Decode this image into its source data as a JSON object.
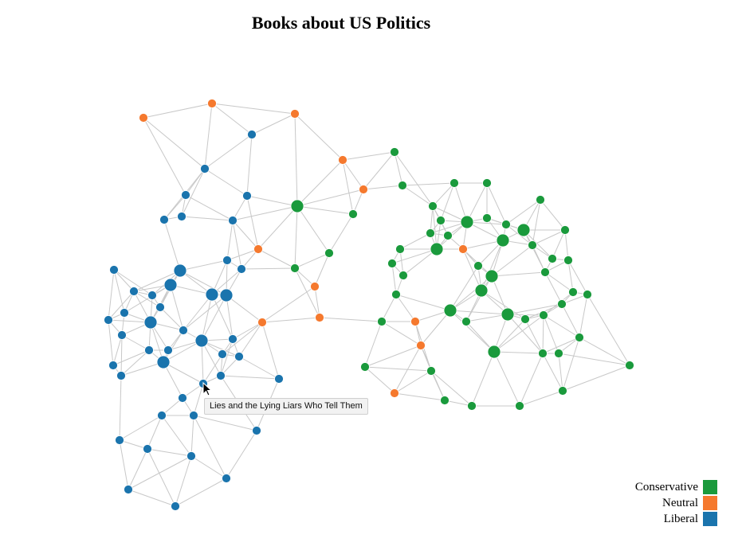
{
  "title": "Books about US Politics",
  "tooltip": "Lies and the Lying Liars Who Tell Them",
  "colors": {
    "conservative": "#1a9a3c",
    "neutral": "#f5792e",
    "liberal": "#1a74ad",
    "edge": "#c8c8c8"
  },
  "legend": [
    {
      "label": "Conservative",
      "group": "conservative"
    },
    {
      "label": "Neutral",
      "group": "neutral"
    },
    {
      "label": "Liberal",
      "group": "liberal"
    }
  ],
  "nodes": {
    "neutral": [
      0,
      0,
      0,
      0,
      0,
      0,
      0,
      0,
      0,
      0,
      0,
      0,
      0
    ],
    "liberal": [
      0,
      0,
      0,
      0,
      0,
      0,
      0,
      1,
      0,
      0,
      0,
      1,
      1,
      1,
      0,
      0,
      0,
      0,
      0,
      1,
      0,
      0,
      1,
      0,
      0,
      0,
      0,
      0,
      0,
      1,
      0,
      0,
      0,
      0,
      0,
      0,
      0,
      0,
      0,
      0,
      0,
      0,
      0,
      0
    ],
    "conservative": [
      0,
      0,
      0,
      0,
      0,
      0,
      1,
      0,
      0,
      1,
      0,
      0,
      1,
      0,
      0,
      1,
      0,
      0,
      1,
      0,
      0,
      0,
      0,
      0,
      0,
      0,
      1,
      0,
      0,
      1,
      0,
      0,
      0,
      1,
      1,
      0,
      0,
      0,
      0,
      0,
      0,
      1,
      0,
      0,
      0,
      0,
      0,
      0,
      0,
      0,
      0
    ]
  }
}
